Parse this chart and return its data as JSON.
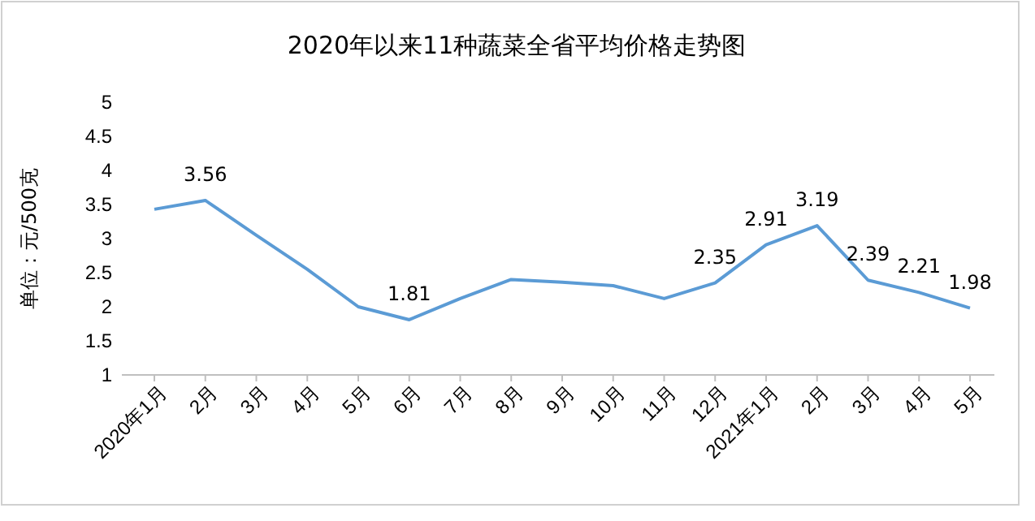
{
  "chart_data": {
    "type": "line",
    "title": "2020年以来11种蔬菜全省平均价格走势图",
    "ylabel": "单位：元/500克",
    "categories": [
      "2020年1月",
      "2月",
      "3月",
      "4月",
      "5月",
      "6月",
      "7月",
      "8月",
      "9月",
      "10月",
      "11月",
      "12月",
      "2021年1月",
      "2月",
      "3月",
      "4月",
      "5月"
    ],
    "series": [
      {
        "color": "#5b9bd5",
        "values": [
          3.43,
          3.56,
          3.05,
          2.55,
          2.0,
          1.81,
          2.12,
          2.4,
          2.36,
          2.31,
          2.12,
          2.35,
          2.91,
          3.19,
          2.39,
          2.21,
          1.98
        ],
        "value_labels": [
          null,
          "3.56",
          null,
          null,
          null,
          "1.81",
          null,
          null,
          null,
          null,
          null,
          "2.35",
          "2.91",
          "3.19",
          "2.39",
          "2.21",
          "1.98"
        ]
      }
    ],
    "ylim": [
      1,
      5
    ],
    "yticks": [
      1,
      1.5,
      2,
      2.5,
      3,
      3.5,
      4,
      4.5,
      5
    ],
    "grid": false,
    "marker": "none",
    "line_style": "solid"
  }
}
